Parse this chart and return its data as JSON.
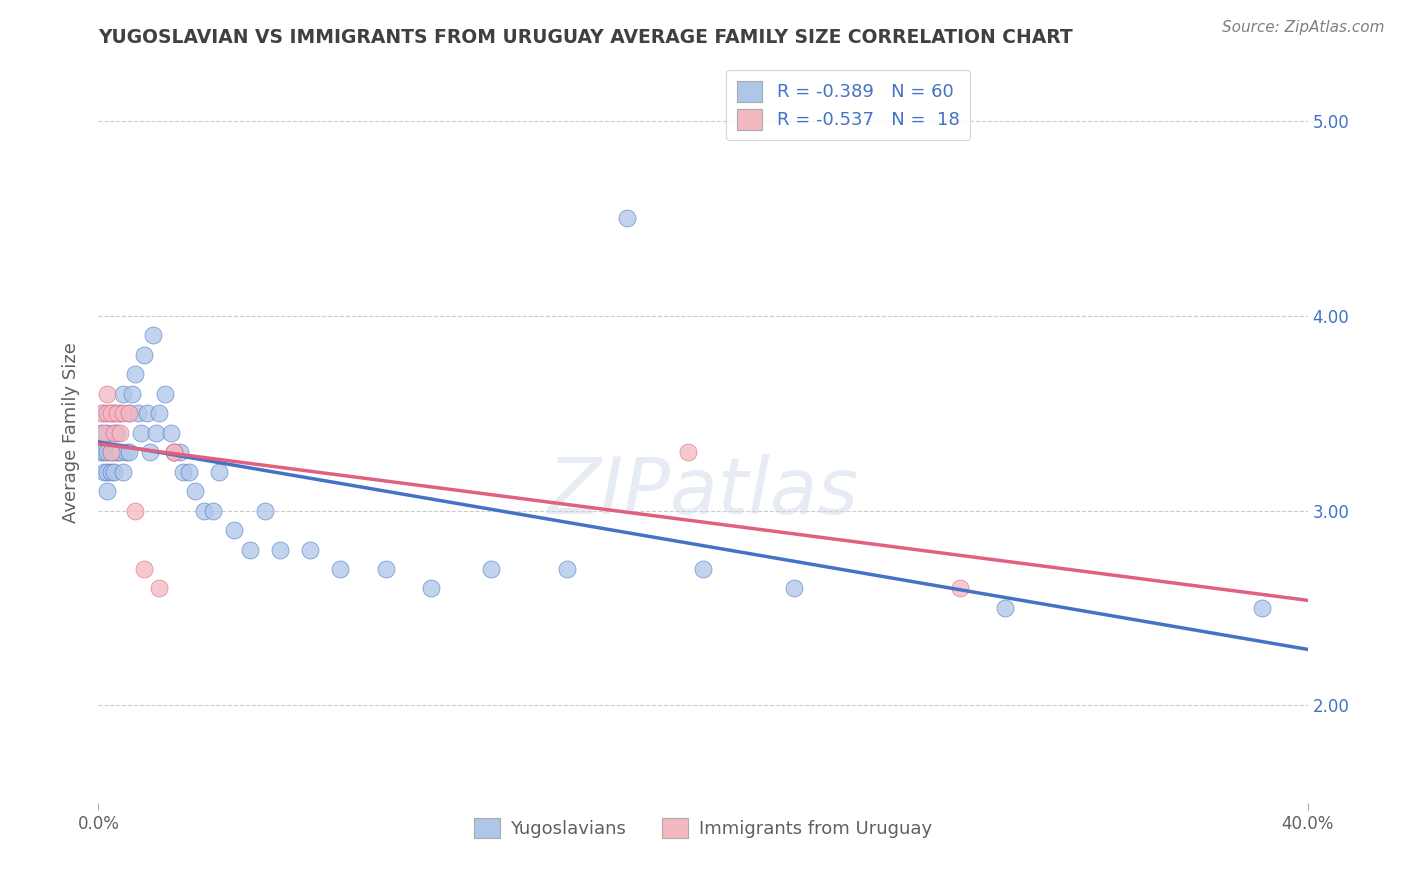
{
  "title": "YUGOSLAVIAN VS IMMIGRANTS FROM URUGUAY AVERAGE FAMILY SIZE CORRELATION CHART",
  "source": "Source: ZipAtlas.com",
  "ylabel": "Average Family Size",
  "watermark": "ZIPatlas",
  "x_min": 0.0,
  "x_max": 0.4,
  "y_min": 1.5,
  "y_max": 5.3,
  "yticks": [
    2.0,
    3.0,
    4.0,
    5.0
  ],
  "series1_label": "Yugoslavians",
  "series1_color": "#aec6e8",
  "series1_line_color": "#4472c4",
  "series1_R": -0.389,
  "series1_N": 60,
  "series2_label": "Immigrants from Uruguay",
  "series2_color": "#f4b8c1",
  "series2_line_color": "#e06080",
  "series2_R": -0.537,
  "series2_N": 18,
  "series1_x": [
    0.001,
    0.001,
    0.002,
    0.002,
    0.002,
    0.003,
    0.003,
    0.003,
    0.003,
    0.004,
    0.004,
    0.004,
    0.005,
    0.005,
    0.005,
    0.005,
    0.006,
    0.006,
    0.007,
    0.007,
    0.008,
    0.008,
    0.009,
    0.01,
    0.01,
    0.011,
    0.012,
    0.013,
    0.014,
    0.015,
    0.016,
    0.017,
    0.018,
    0.019,
    0.02,
    0.022,
    0.024,
    0.025,
    0.027,
    0.028,
    0.03,
    0.032,
    0.035,
    0.038,
    0.04,
    0.045,
    0.05,
    0.055,
    0.06,
    0.07,
    0.08,
    0.095,
    0.11,
    0.13,
    0.155,
    0.175,
    0.2,
    0.23,
    0.3,
    0.385
  ],
  "series1_y": [
    3.3,
    3.4,
    3.2,
    3.5,
    3.3,
    3.4,
    3.3,
    3.2,
    3.1,
    3.5,
    3.3,
    3.2,
    3.4,
    3.5,
    3.3,
    3.2,
    3.4,
    3.3,
    3.5,
    3.3,
    3.6,
    3.2,
    3.3,
    3.5,
    3.3,
    3.6,
    3.7,
    3.5,
    3.4,
    3.8,
    3.5,
    3.3,
    3.9,
    3.4,
    3.5,
    3.6,
    3.4,
    3.3,
    3.3,
    3.2,
    3.2,
    3.1,
    3.0,
    3.0,
    3.2,
    2.9,
    2.8,
    3.0,
    2.8,
    2.8,
    2.7,
    2.7,
    2.6,
    2.7,
    2.7,
    4.5,
    2.7,
    2.6,
    2.5,
    2.5
  ],
  "series2_x": [
    0.001,
    0.002,
    0.003,
    0.003,
    0.004,
    0.004,
    0.005,
    0.006,
    0.007,
    0.008,
    0.01,
    0.012,
    0.015,
    0.02,
    0.025,
    0.025,
    0.195,
    0.285
  ],
  "series2_y": [
    3.5,
    3.4,
    3.6,
    3.5,
    3.5,
    3.3,
    3.4,
    3.5,
    3.4,
    3.5,
    3.5,
    3.0,
    2.7,
    2.6,
    3.3,
    3.3,
    3.3,
    2.6
  ],
  "title_color": "#404040",
  "axis_label_color": "#606060",
  "tick_color_right": "#4472c4",
  "background_color": "#ffffff",
  "grid_color": "#cccccc"
}
